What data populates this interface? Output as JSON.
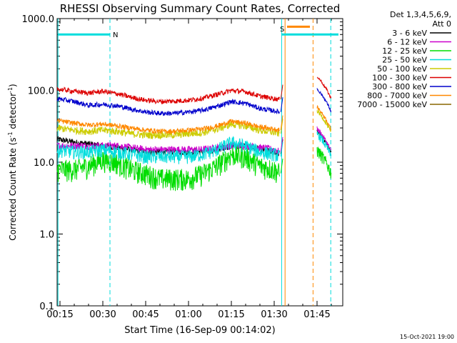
{
  "chart_data": {
    "type": "line",
    "title": "RHESSI Observing Summary Count Rates, Corrected",
    "xlabel": "Start Time (16-Sep-09 00:14:02)",
    "ylabel": "Corrected Count Rate (s⁻¹ detector⁻¹)",
    "ylabel_main": "Corrected Count Rate (s",
    "ylabel_sup1": "-1",
    "ylabel_mid": " detector",
    "ylabel_sup2": "-1",
    "ylabel_end": ")",
    "xlim": [
      14.0,
      114.0
    ],
    "ylim": [
      0.1,
      1000.0
    ],
    "yscale": "log",
    "x_ticks": [
      15,
      30,
      45,
      60,
      75,
      90,
      105
    ],
    "x_tick_labels": [
      "00:15",
      "00:30",
      "00:45",
      "01:00",
      "01:15",
      "01:30",
      "01:45"
    ],
    "y_ticks": [
      0.1,
      1.0,
      10.0,
      100.0,
      1000.0
    ],
    "y_tick_labels": [
      "0.1",
      "1.0",
      "10.0",
      "100.0",
      "1000.0"
    ],
    "legend_header": [
      "Det 1,3,4,5,6,9,",
      "Att 0"
    ],
    "legend_position": "right",
    "series": [
      {
        "name": "3 - 6 keV",
        "color": "#000000",
        "x": [
          14,
          20,
          25,
          30,
          35,
          40,
          45,
          50,
          55,
          60,
          65,
          70,
          75,
          80,
          85,
          90,
          92
        ],
        "y": [
          21,
          19,
          18,
          17,
          16,
          15,
          14,
          14,
          14,
          14,
          14,
          15,
          17,
          17,
          15,
          14,
          13
        ]
      },
      {
        "name": "6 - 12 keV",
        "color": "#cc00cc",
        "x": [
          14,
          20,
          25,
          30,
          35,
          40,
          45,
          50,
          55,
          60,
          65,
          70,
          75,
          80,
          85,
          90,
          92
        ],
        "y": [
          17,
          17,
          17,
          17,
          17,
          16,
          15,
          15,
          15,
          15,
          15,
          16,
          17,
          17,
          16,
          15,
          14
        ]
      },
      {
        "name": "12 - 25 keV",
        "color": "#00dd00",
        "x": [
          14,
          20,
          25,
          30,
          35,
          40,
          45,
          50,
          55,
          60,
          65,
          70,
          75,
          80,
          85,
          90,
          92
        ],
        "y": [
          8,
          8,
          9,
          11,
          10,
          8,
          7,
          6,
          6,
          6,
          7,
          9,
          13,
          12,
          9,
          8,
          7
        ]
      },
      {
        "name": "25 - 50 keV",
        "color": "#00dddd",
        "x": [
          14,
          20,
          25,
          30,
          35,
          40,
          45,
          50,
          55,
          60,
          65,
          70,
          75,
          80,
          85,
          90,
          92
        ],
        "y": [
          15,
          14,
          14,
          15,
          14,
          13,
          12,
          12,
          12,
          12,
          13,
          15,
          19,
          17,
          14,
          13,
          12
        ]
      },
      {
        "name": "50 - 100 keV",
        "color": "#cccc00",
        "x": [
          14,
          20,
          25,
          30,
          35,
          40,
          45,
          50,
          55,
          60,
          65,
          70,
          75,
          80,
          85,
          90,
          92
        ],
        "y": [
          30,
          28,
          27,
          28,
          27,
          25,
          24,
          24,
          24,
          25,
          26,
          29,
          34,
          32,
          28,
          26,
          25
        ]
      },
      {
        "name": "100 - 300 keV",
        "color": "#dd0000",
        "x": [
          14,
          20,
          25,
          30,
          35,
          40,
          45,
          50,
          55,
          60,
          65,
          70,
          75,
          80,
          85,
          90,
          92
        ],
        "y": [
          105,
          97,
          92,
          97,
          90,
          80,
          73,
          70,
          71,
          73,
          78,
          88,
          100,
          96,
          83,
          77,
          75
        ]
      },
      {
        "name": "300 - 800 keV",
        "color": "#0000cc",
        "x": [
          14,
          20,
          25,
          30,
          35,
          40,
          45,
          50,
          55,
          60,
          65,
          70,
          75,
          80,
          85,
          90,
          92
        ],
        "y": [
          77,
          70,
          62,
          64,
          61,
          55,
          50,
          48,
          48,
          50,
          53,
          60,
          70,
          66,
          56,
          52,
          50
        ]
      },
      {
        "name": "800 - 7000 keV",
        "color": "#ff8800",
        "x": [
          14,
          20,
          25,
          30,
          35,
          40,
          45,
          50,
          55,
          60,
          65,
          70,
          75,
          80,
          85,
          90,
          92
        ],
        "y": [
          38,
          35,
          33,
          34,
          32,
          30,
          28,
          27,
          27,
          28,
          29,
          32,
          37,
          35,
          31,
          29,
          28
        ]
      },
      {
        "name": "7000 - 15000 keV",
        "color": "#886600",
        "x": [],
        "y": []
      }
    ],
    "annotations": [
      {
        "text": "N",
        "color": "#00dddd"
      },
      {
        "text": "S",
        "color": "#cccc00"
      }
    ],
    "footer": "15-Oct-2021 19:00"
  }
}
